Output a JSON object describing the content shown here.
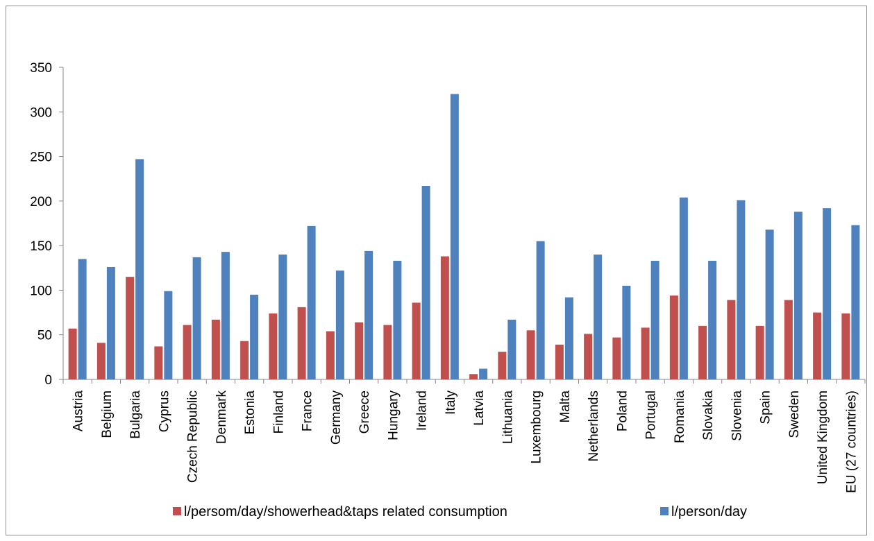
{
  "chart_data": {
    "type": "bar",
    "categories": [
      "Austria",
      "Belgium",
      "Bulgaria",
      "Cyprus",
      "Czech Republic",
      "Denmark",
      "Estonia",
      "Finland",
      "France",
      "Germany",
      "Greece",
      "Hungary",
      "Ireland",
      "Italy",
      "Latvia",
      "Lithuania",
      "Luxembourg",
      "Malta",
      "Netherlands",
      "Poland",
      "Portugal",
      "Romania",
      "Slovakia",
      "Slovenia",
      "Spain",
      "Sweden",
      "United Kingdom",
      "EU (27 countries)"
    ],
    "series": [
      {
        "name": "l/persom/day/showerhead&taps related consumption",
        "color": "#c0504d",
        "values": [
          57,
          41,
          115,
          37,
          61,
          67,
          43,
          74,
          81,
          54,
          64,
          61,
          86,
          138,
          6,
          31,
          55,
          39,
          51,
          47,
          58,
          94,
          60,
          89,
          60,
          89,
          75,
          74
        ]
      },
      {
        "name": "l/person/day",
        "color": "#4f81bd",
        "values": [
          135,
          126,
          247,
          99,
          137,
          143,
          95,
          140,
          172,
          122,
          144,
          133,
          217,
          320,
          12,
          67,
          155,
          92,
          140,
          105,
          133,
          204,
          133,
          201,
          168,
          188,
          192,
          173
        ]
      }
    ],
    "yticks": [
      0,
      50,
      100,
      150,
      200,
      250,
      300,
      350
    ],
    "ylim": [
      0,
      350
    ],
    "grid": false,
    "legend": "bottom"
  }
}
